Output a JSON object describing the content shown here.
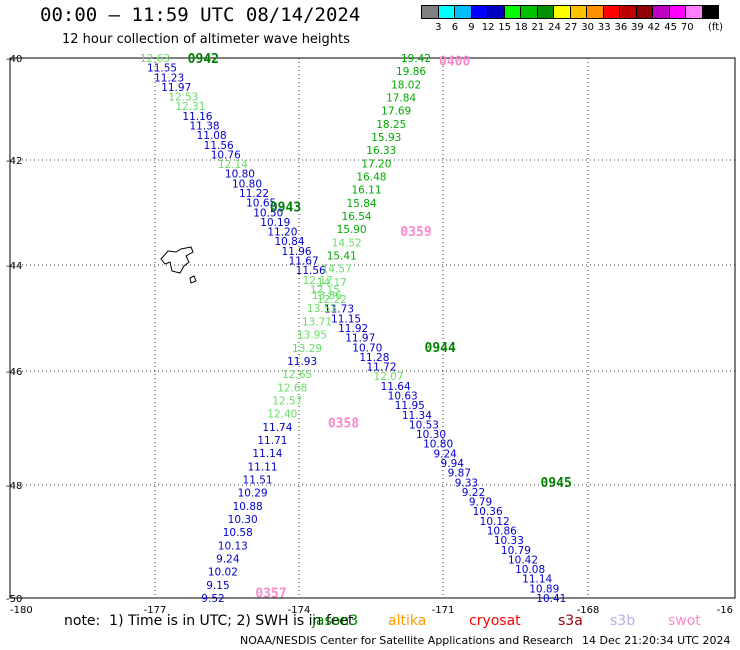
{
  "title": "00:00 – 11:59 UTC 08/14/2024",
  "subtitle": "12 hour collection of altimeter wave heights",
  "colorbar": {
    "colors": [
      "#7f7f7f",
      "#00ffff",
      "#00bfff",
      "#0000ff",
      "#0000c0",
      "#00ff00",
      "#00c000",
      "#009000",
      "#ffff00",
      "#ffc000",
      "#ff9000",
      "#ff0000",
      "#c00000",
      "#900000",
      "#c000c0",
      "#ff00ff",
      "#ff80ff",
      "#000000"
    ],
    "labels": [
      "3",
      "6",
      "9",
      "12",
      "15",
      "18",
      "21",
      "24",
      "27",
      "30",
      "33",
      "36",
      "39",
      "42",
      "45",
      "70"
    ],
    "unit": "(ft)"
  },
  "chart_data": {
    "type": "scatter",
    "xlim": [
      -180,
      -165
    ],
    "ylim": [
      -50,
      -40
    ],
    "x_ticks": [
      "-180",
      "-177",
      "-174",
      "-171",
      "-168",
      "-16"
    ],
    "y_ticks": [
      "-40",
      "-42",
      "-44",
      "-46",
      "-48",
      "-50"
    ],
    "grid": "dotted",
    "tracks": [
      {
        "time": "0942",
        "time_color": "#008000",
        "start": [
          -177.0,
          -40.0
        ],
        "end": [
          -168.8,
          -50.0
        ],
        "points": [
          {
            "v": "12.63",
            "c": "#66dd66"
          },
          {
            "v": "11.55",
            "c": "#0000cc"
          },
          {
            "v": "11.23",
            "c": "#0000cc"
          },
          {
            "v": "11.97",
            "c": "#0000cc"
          },
          {
            "v": "12.53",
            "c": "#66dd66"
          },
          {
            "v": "12.31",
            "c": "#66dd66"
          },
          {
            "v": "11.16",
            "c": "#0000cc"
          },
          {
            "v": "11.38",
            "c": "#0000cc"
          },
          {
            "v": "11.08",
            "c": "#0000cc"
          },
          {
            "v": "11.56",
            "c": "#0000cc"
          },
          {
            "v": "10.76",
            "c": "#0000cc"
          },
          {
            "v": "12.14",
            "c": "#66dd66"
          },
          {
            "v": "10.80",
            "c": "#0000cc"
          },
          {
            "v": "10.80",
            "c": "#0000cc"
          },
          {
            "v": "11.22",
            "c": "#0000cc"
          },
          {
            "v": "10.65",
            "c": "#0000cc"
          },
          {
            "v": "10.50",
            "c": "#0000cc"
          },
          {
            "v": "10.19",
            "c": "#0000cc"
          },
          {
            "v": "11.20",
            "c": "#0000cc"
          },
          {
            "v": "10.84",
            "c": "#0000cc"
          },
          {
            "v": "11.96",
            "c": "#0000cc"
          },
          {
            "v": "11.67",
            "c": "#0000cc"
          },
          {
            "v": "11.56",
            "c": "#0000cc"
          },
          {
            "v": "12.17",
            "c": "#66dd66"
          },
          {
            "v": "12.15",
            "c": "#66dd66"
          },
          {
            "v": "12.22",
            "c": "#66dd66"
          },
          {
            "v": "11.73",
            "c": "#0000cc"
          },
          {
            "v": "11.15",
            "c": "#0000cc"
          },
          {
            "v": "11.92",
            "c": "#0000cc"
          },
          {
            "v": "11.97",
            "c": "#0000cc"
          },
          {
            "v": "10.70",
            "c": "#0000cc"
          },
          {
            "v": "11.28",
            "c": "#0000cc"
          },
          {
            "v": "11.72",
            "c": "#0000cc"
          },
          {
            "v": "12.07",
            "c": "#66dd66"
          },
          {
            "v": "11.64",
            "c": "#0000cc"
          },
          {
            "v": "10.63",
            "c": "#0000cc"
          },
          {
            "v": "11.95",
            "c": "#0000cc"
          },
          {
            "v": "11.34",
            "c": "#0000cc"
          },
          {
            "v": "10.53",
            "c": "#0000cc"
          },
          {
            "v": "10.30",
            "c": "#0000cc"
          },
          {
            "v": "10.80",
            "c": "#0000cc"
          },
          {
            "v": "9.24",
            "c": "#0000cc"
          },
          {
            "v": "9.94",
            "c": "#0000cc"
          },
          {
            "v": "9.87",
            "c": "#0000cc"
          },
          {
            "v": "9.33",
            "c": "#0000cc"
          },
          {
            "v": "9.22",
            "c": "#0000cc"
          },
          {
            "v": "9.79",
            "c": "#0000cc"
          },
          {
            "v": "10.36",
            "c": "#0000cc"
          },
          {
            "v": "10.12",
            "c": "#0000cc"
          },
          {
            "v": "10.86",
            "c": "#0000cc"
          },
          {
            "v": "10.33",
            "c": "#0000cc"
          },
          {
            "v": "10.79",
            "c": "#0000cc"
          },
          {
            "v": "10.42",
            "c": "#0000cc"
          },
          {
            "v": "10.08",
            "c": "#0000cc"
          },
          {
            "v": "11.14",
            "c": "#0000cc"
          },
          {
            "v": "10.89",
            "c": "#0000cc"
          },
          {
            "v": "10.41",
            "c": "#0000cc"
          }
        ]
      },
      {
        "time": "0400",
        "time_color": "#ff88cc",
        "start": [
          -171.6,
          -40.0
        ],
        "end": [
          -175.8,
          -50.0
        ],
        "points": [
          {
            "v": "19.42",
            "c": "#00aa00"
          },
          {
            "v": "19.86",
            "c": "#00aa00"
          },
          {
            "v": "18.02",
            "c": "#00aa00"
          },
          {
            "v": "17.84",
            "c": "#00aa00"
          },
          {
            "v": "17.69",
            "c": "#00aa00"
          },
          {
            "v": "18.25",
            "c": "#00aa00"
          },
          {
            "v": "15.93",
            "c": "#00aa00"
          },
          {
            "v": "16.33",
            "c": "#00aa00"
          },
          {
            "v": "17.20",
            "c": "#00aa00"
          },
          {
            "v": "16.48",
            "c": "#00aa00"
          },
          {
            "v": "16.11",
            "c": "#00aa00"
          },
          {
            "v": "15.84",
            "c": "#00aa00"
          },
          {
            "v": "16.54",
            "c": "#00aa00"
          },
          {
            "v": "15.90",
            "c": "#00aa00"
          },
          {
            "v": "14.52",
            "c": "#66dd66"
          },
          {
            "v": "15.41",
            "c": "#00aa00"
          },
          {
            "v": "14.57",
            "c": "#66dd66"
          },
          {
            "v": "14.17",
            "c": "#66dd66"
          },
          {
            "v": "13.86",
            "c": "#66dd66"
          },
          {
            "v": "13.53",
            "c": "#66dd66"
          },
          {
            "v": "13.71",
            "c": "#66dd66"
          },
          {
            "v": "13.95",
            "c": "#66dd66"
          },
          {
            "v": "13.29",
            "c": "#66dd66"
          },
          {
            "v": "11.93",
            "c": "#0000cc"
          },
          {
            "v": "12.65",
            "c": "#66dd66"
          },
          {
            "v": "12.68",
            "c": "#66dd66"
          },
          {
            "v": "12.57",
            "c": "#66dd66"
          },
          {
            "v": "12.40",
            "c": "#66dd66"
          },
          {
            "v": "11.74",
            "c": "#0000cc"
          },
          {
            "v": "11.71",
            "c": "#0000cc"
          },
          {
            "v": "11.14",
            "c": "#0000cc"
          },
          {
            "v": "11.11",
            "c": "#0000cc"
          },
          {
            "v": "11.51",
            "c": "#0000cc"
          },
          {
            "v": "10.29",
            "c": "#0000cc"
          },
          {
            "v": "10.88",
            "c": "#0000cc"
          },
          {
            "v": "10.30",
            "c": "#0000cc"
          },
          {
            "v": "10.58",
            "c": "#0000cc"
          },
          {
            "v": "10.13",
            "c": "#0000cc"
          },
          {
            "v": "9.24",
            "c": "#0000cc"
          },
          {
            "v": "10.02",
            "c": "#0000cc"
          },
          {
            "v": "9.15",
            "c": "#0000cc"
          },
          {
            "v": "9.52",
            "c": "#0000cc"
          }
        ]
      }
    ],
    "time_labels": [
      {
        "text": "0942",
        "color": "#008000",
        "at": [
          -176.0,
          -40.0
        ]
      },
      {
        "text": "0400",
        "color": "#ff88cc",
        "at": [
          -170.8,
          -40.05
        ]
      },
      {
        "text": "0943",
        "color": "#008000",
        "at": [
          -174.3,
          -42.75
        ]
      },
      {
        "text": "0359",
        "color": "#ff88cc",
        "at": [
          -171.6,
          -43.2
        ]
      },
      {
        "text": "0944",
        "color": "#008000",
        "at": [
          -171.1,
          -45.35
        ]
      },
      {
        "text": "0358",
        "color": "#ff88cc",
        "at": [
          -173.1,
          -46.75
        ]
      },
      {
        "text": "0945",
        "color": "#008000",
        "at": [
          -168.7,
          -47.85
        ]
      },
      {
        "text": "0357",
        "color": "#ff88cc",
        "at": [
          -174.6,
          -49.9
        ]
      }
    ]
  },
  "note": "note:  1) Time is in UTC; 2) SWH is in feet",
  "missions": [
    {
      "name": "jason3",
      "color": "#008000"
    },
    {
      "name": "altika",
      "color": "#ff9900"
    },
    {
      "name": "cryosat",
      "color": "#ff0000"
    },
    {
      "name": "s3a",
      "color": "#990000"
    },
    {
      "name": "s3b",
      "color": "#bbaaee"
    },
    {
      "name": "swot",
      "color": "#ff88cc"
    }
  ],
  "footer": "NOAA/NESDIS Center for Satellite Applications and Research",
  "footer_date": "14 Dec 21:20:34 UTC 2024"
}
